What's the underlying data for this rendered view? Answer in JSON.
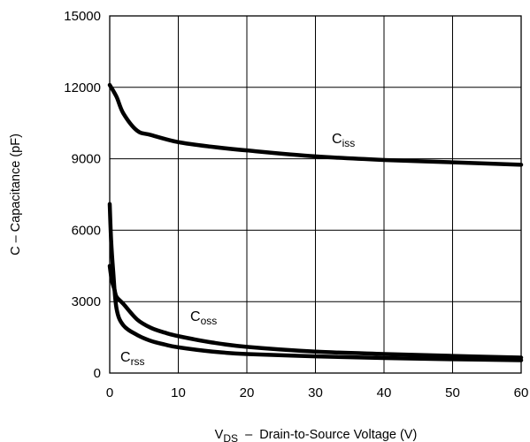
{
  "chart_data": {
    "type": "line",
    "title": "",
    "xlabel": {
      "main": "V",
      "sub": "DS",
      "rest": "  –  Drain-to-Source Voltage (V)"
    },
    "ylabel": "C  –  Capacitance (pF)",
    "xlim": [
      0,
      60
    ],
    "ylim": [
      0,
      15000
    ],
    "x_ticks": [
      "0",
      "10",
      "20",
      "30",
      "40",
      "50",
      "60"
    ],
    "y_ticks": [
      "0",
      "3000",
      "6000",
      "9000",
      "12000",
      "15000"
    ],
    "grid": true,
    "legend": "none",
    "series": [
      {
        "name": "Ciss",
        "label_main": "C",
        "label_sub": "iss",
        "x": [
          0,
          1,
          2,
          4,
          6,
          10,
          15,
          20,
          30,
          40,
          50,
          60
        ],
        "y": [
          12100,
          11600,
          10900,
          10180,
          10000,
          9700,
          9500,
          9350,
          9100,
          8950,
          8850,
          8750
        ]
      },
      {
        "name": "Coss",
        "label_main": "C",
        "label_sub": "oss",
        "x": [
          0,
          0.3,
          0.7,
          1,
          2,
          4,
          6,
          8,
          10,
          15,
          20,
          30,
          40,
          50,
          60
        ],
        "y": [
          4500,
          3900,
          3500,
          3200,
          2900,
          2250,
          1900,
          1700,
          1550,
          1280,
          1100,
          900,
          800,
          720,
          650
        ]
      },
      {
        "name": "Crss",
        "label_main": "C",
        "label_sub": "rss",
        "x": [
          0,
          0.2,
          0.5,
          1,
          2,
          4,
          6,
          8,
          10,
          15,
          20,
          30,
          40,
          50,
          60
        ],
        "y": [
          7100,
          5600,
          4300,
          2700,
          2000,
          1600,
          1350,
          1200,
          1080,
          900,
          800,
          700,
          630,
          580,
          540
        ]
      }
    ]
  }
}
